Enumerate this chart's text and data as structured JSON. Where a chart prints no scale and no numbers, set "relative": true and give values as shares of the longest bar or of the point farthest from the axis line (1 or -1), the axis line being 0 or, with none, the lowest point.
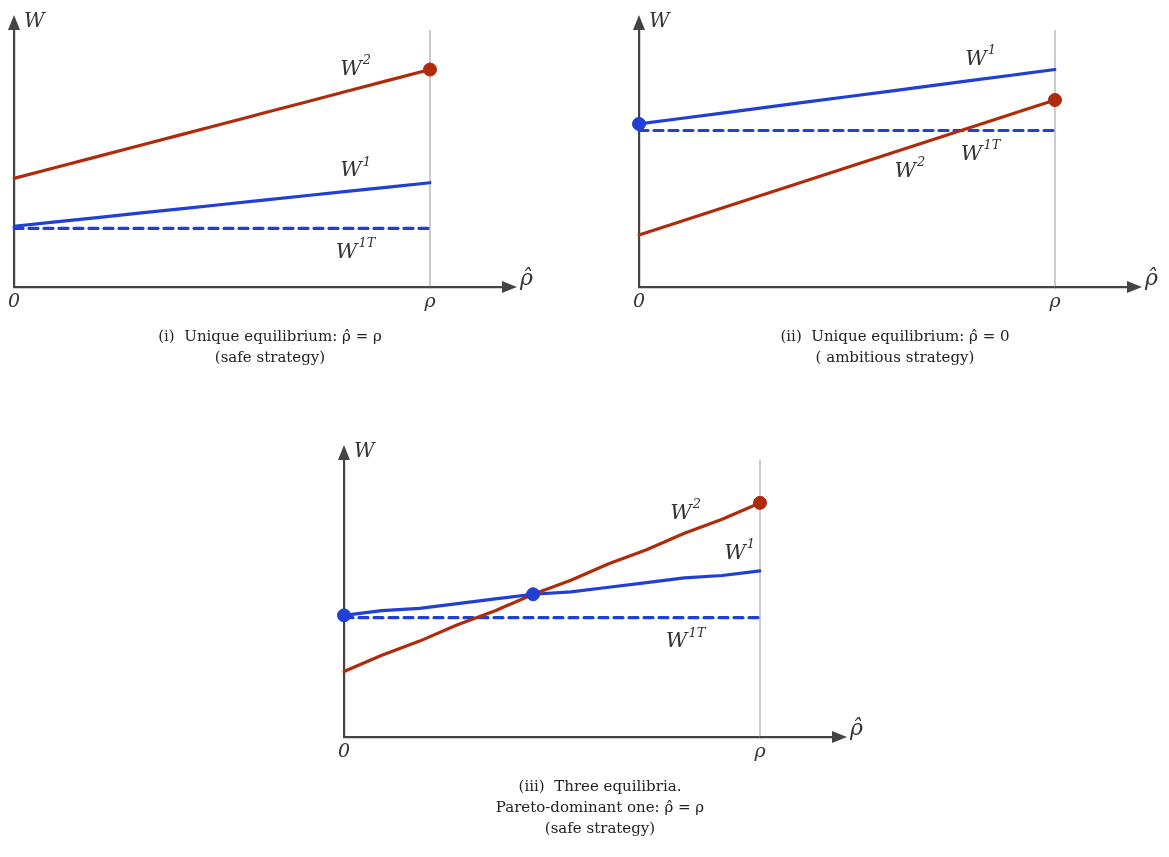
{
  "chart_data": [
    {
      "type": "line",
      "relative": true,
      "xlabel": "ρ̂",
      "ylabel": "W",
      "categories": [
        "0",
        null,
        null,
        null,
        null,
        null,
        null,
        null,
        null,
        null,
        "ρ"
      ],
      "tick_labels": "x",
      "grid": false,
      "legend": false,
      "marker": "none",
      "series": [
        {
          "name": "W$^{2}$",
          "color": "#b02a0c",
          "values": [
            0.5,
            0.55,
            0.6,
            0.65,
            0.7,
            0.75,
            0.8,
            0.85,
            0.9,
            0.95,
            1.0
          ]
        },
        {
          "name": "W$^{1}$",
          "color": "#1f3fd6",
          "values": [
            0.28,
            0.3,
            0.32,
            0.34,
            0.36,
            0.38,
            0.4,
            0.42,
            0.44,
            0.46,
            0.48
          ]
        },
        {
          "name": "W$^{1T}$",
          "color": "#1f3fd6",
          "values": [
            0.27,
            0.27,
            0.27,
            0.27,
            0.27,
            0.27,
            0.27,
            0.27,
            0.27,
            0.27,
            0.27
          ],
          "line_style": "dashed"
        },
        {
          "type": "scatter",
          "color": "#b02a0c",
          "values": [
            null,
            null,
            null,
            null,
            null,
            null,
            null,
            null,
            null,
            null,
            1.0
          ],
          "marker": "circle"
        }
      ],
      "ref_lines": [
        {
          "axis": "x",
          "value": "ρ",
          "color": "#999999"
        }
      ],
      "annotations": [
        "(i)  Unique equilibrium: ρ̂ = ρ",
        "(safe strategy)"
      ]
    },
    {
      "type": "line",
      "relative": true,
      "xlabel": "ρ̂",
      "ylabel": "W",
      "categories": [
        "0",
        null,
        null,
        null,
        null,
        null,
        null,
        null,
        null,
        null,
        "ρ"
      ],
      "tick_labels": "x",
      "grid": false,
      "legend": false,
      "marker": "none",
      "series": [
        {
          "name": "W$^{1}$",
          "color": "#1f3fd6",
          "values": [
            0.75,
            0.775,
            0.8,
            0.825,
            0.85,
            0.875,
            0.9,
            0.925,
            0.95,
            0.975,
            1.0
          ]
        },
        {
          "name": "W$^{2}$",
          "color": "#b02a0c",
          "values": [
            0.24,
            0.302,
            0.364,
            0.426,
            0.488,
            0.55,
            0.612,
            0.674,
            0.736,
            0.798,
            0.86
          ]
        },
        {
          "name": "W$^{1T}$",
          "color": "#1f3fd6",
          "values": [
            0.72,
            0.72,
            0.72,
            0.72,
            0.72,
            0.72,
            0.72,
            0.72,
            0.72,
            0.72,
            0.72
          ],
          "line_style": "dashed"
        },
        {
          "type": "scatter",
          "color": "#1f3fd6",
          "values": [
            0.75,
            null,
            null,
            null,
            null,
            null,
            null,
            null,
            null,
            null,
            null
          ],
          "marker": "circle"
        },
        {
          "type": "scatter",
          "color": "#b02a0c",
          "values": [
            null,
            null,
            null,
            null,
            null,
            null,
            null,
            null,
            null,
            null,
            0.86
          ],
          "marker": "circle"
        }
      ],
      "ref_lines": [
        {
          "axis": "x",
          "value": "ρ",
          "color": "#999999"
        }
      ],
      "annotations": [
        "(ii)  Unique equilibrium: ρ̂ = 0",
        "( ambitious strategy)"
      ]
    },
    {
      "type": "line",
      "relative": true,
      "xlabel": "ρ̂",
      "ylabel": "W",
      "categories": [
        "0",
        null,
        null,
        null,
        null,
        null,
        null,
        null,
        null,
        null,
        null,
        "ρ"
      ],
      "tick_labels": "x",
      "grid": false,
      "legend": false,
      "marker": "none",
      "series": [
        {
          "name": "W$^{2}$",
          "color": "#b02a0c",
          "values": [
            0.28,
            0.35,
            0.41,
            0.48,
            0.54,
            0.61,
            0.67,
            0.74,
            0.8,
            0.87,
            0.93,
            1.0
          ]
        },
        {
          "name": "W$^{1}$",
          "color": "#1f3fd6",
          "values": [
            0.52,
            0.54,
            0.55,
            0.57,
            0.59,
            0.61,
            0.62,
            0.64,
            0.66,
            0.68,
            0.69,
            0.71
          ]
        },
        {
          "name": "W$^{1T}$",
          "color": "#1f3fd6",
          "values": [
            0.51,
            0.51,
            0.51,
            0.51,
            0.51,
            0.51,
            0.51,
            0.51,
            0.51,
            0.51,
            0.51,
            0.51
          ],
          "line_style": "dashed"
        },
        {
          "type": "scatter",
          "color": "#1f3fd6",
          "values": [
            0.52,
            null,
            null,
            null,
            null,
            0.61,
            null,
            null,
            null,
            null,
            null,
            null
          ],
          "marker": "circle"
        },
        {
          "type": "scatter",
          "color": "#b02a0c",
          "values": [
            null,
            null,
            null,
            null,
            null,
            null,
            null,
            null,
            null,
            null,
            null,
            1.0
          ],
          "marker": "circle"
        }
      ],
      "ref_lines": [
        {
          "axis": "x",
          "value": "ρ",
          "color": "#999999"
        }
      ],
      "annotations": [
        "(iii)  Three equilibria.",
        "Pareto-dominant one: ρ̂ = ρ",
        "(safe strategy)"
      ]
    }
  ]
}
